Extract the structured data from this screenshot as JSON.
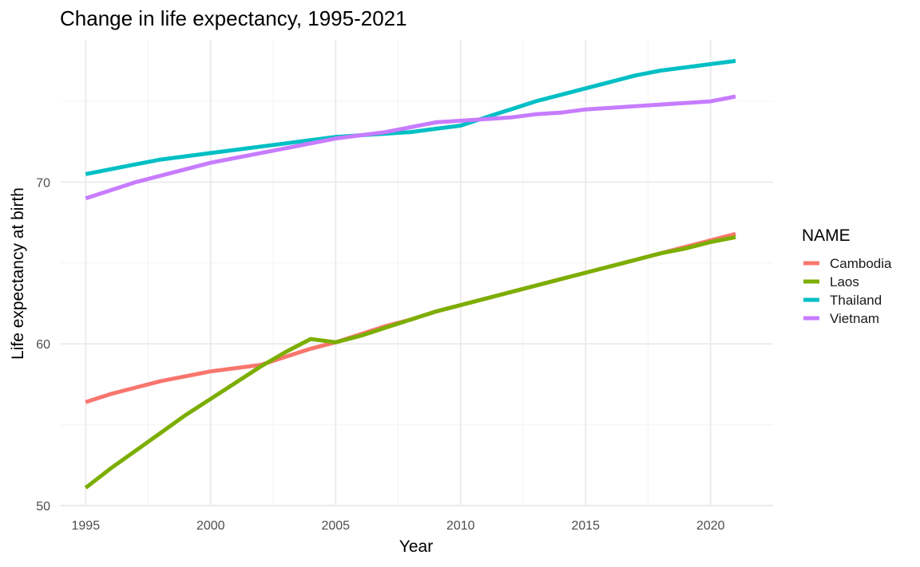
{
  "chart_data": {
    "type": "line",
    "title": "Change in life expectancy, 1995-2021",
    "xlabel": "Year",
    "ylabel": "Life expectancy at birth",
    "xlim": [
      1994,
      2022.5
    ],
    "ylim": [
      50,
      78.8
    ],
    "x_ticks": [
      1995,
      2000,
      2005,
      2010,
      2015,
      2020
    ],
    "y_ticks": [
      50,
      60,
      70
    ],
    "x_tick_labels": [
      "1995",
      "2000",
      "2005",
      "2010",
      "2015",
      "2020"
    ],
    "y_tick_labels": [
      "50",
      "60",
      "70"
    ],
    "grid": true,
    "legend": {
      "title": "NAME",
      "placement": "right"
    },
    "series": [
      {
        "name": "Cambodia",
        "color": "#F8766D",
        "x": [
          1995,
          1996,
          1997,
          1998,
          1999,
          2000,
          2001,
          2002,
          2003,
          2004,
          2005,
          2006,
          2007,
          2008,
          2009,
          2010,
          2011,
          2012,
          2013,
          2014,
          2015,
          2016,
          2017,
          2018,
          2019,
          2020,
          2021
        ],
        "y": [
          56.4,
          56.9,
          57.3,
          57.7,
          58.0,
          58.3,
          58.5,
          58.7,
          59.2,
          59.7,
          60.1,
          60.6,
          61.1,
          61.5,
          62.0,
          62.4,
          62.8,
          63.2,
          63.6,
          64.0,
          64.4,
          64.8,
          65.2,
          65.6,
          66.0,
          66.4,
          66.8
        ]
      },
      {
        "name": "Laos",
        "color": "#7CAE00",
        "x": [
          1995,
          1996,
          1997,
          1998,
          1999,
          2000,
          2001,
          2002,
          2003,
          2004,
          2005,
          2006,
          2007,
          2008,
          2009,
          2010,
          2011,
          2012,
          2013,
          2014,
          2015,
          2016,
          2017,
          2018,
          2019,
          2020,
          2021
        ],
        "y": [
          51.1,
          52.3,
          53.4,
          54.5,
          55.6,
          56.6,
          57.6,
          58.6,
          59.5,
          60.3,
          60.1,
          60.5,
          61.0,
          61.5,
          62.0,
          62.4,
          62.8,
          63.2,
          63.6,
          64.0,
          64.4,
          64.8,
          65.2,
          65.6,
          65.9,
          66.3,
          66.6
        ]
      },
      {
        "name": "Thailand",
        "color": "#00BFC4",
        "x": [
          1995,
          1996,
          1997,
          1998,
          1999,
          2000,
          2001,
          2002,
          2003,
          2004,
          2005,
          2006,
          2007,
          2008,
          2009,
          2010,
          2011,
          2012,
          2013,
          2014,
          2015,
          2016,
          2017,
          2018,
          2019,
          2020,
          2021
        ],
        "y": [
          70.5,
          70.8,
          71.1,
          71.4,
          71.6,
          71.8,
          72.0,
          72.2,
          72.4,
          72.6,
          72.8,
          72.9,
          73.0,
          73.1,
          73.3,
          73.5,
          74.0,
          74.5,
          75.0,
          75.4,
          75.8,
          76.2,
          76.6,
          76.9,
          77.1,
          77.3,
          77.5
        ]
      },
      {
        "name": "Vietnam",
        "color": "#C77CFF",
        "x": [
          1995,
          1996,
          1997,
          1998,
          1999,
          2000,
          2001,
          2002,
          2003,
          2004,
          2005,
          2006,
          2007,
          2008,
          2009,
          2010,
          2011,
          2012,
          2013,
          2014,
          2015,
          2016,
          2017,
          2018,
          2019,
          2020,
          2021
        ],
        "y": [
          69.0,
          69.5,
          70.0,
          70.4,
          70.8,
          71.2,
          71.5,
          71.8,
          72.1,
          72.4,
          72.7,
          72.9,
          73.1,
          73.4,
          73.7,
          73.8,
          73.9,
          74.0,
          74.2,
          74.3,
          74.5,
          74.6,
          74.7,
          74.8,
          74.9,
          75.0,
          75.3
        ]
      }
    ]
  }
}
